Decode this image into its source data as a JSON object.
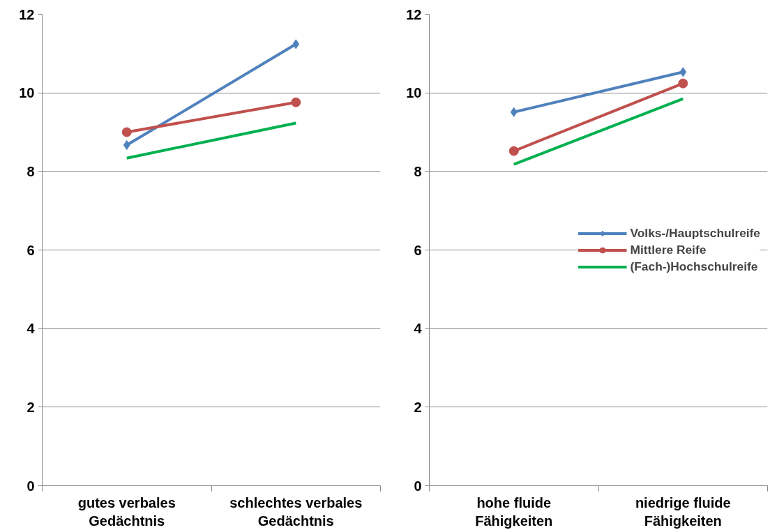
{
  "chart_data": [
    {
      "type": "line",
      "categories": [
        "gutes verbales\nGedächtnis",
        "schlechtes verbales\nGedächtnis"
      ],
      "ylim": [
        0,
        12
      ],
      "yticks": [
        0,
        2,
        4,
        6,
        8,
        10,
        12
      ],
      "grid": "y",
      "legend": false,
      "series": [
        {
          "color": "#4f81bd",
          "marker": "diamond",
          "values": [
            8.67,
            11.24
          ]
        },
        {
          "color": "#c0504d",
          "marker": "circle",
          "values": [
            9.0,
            9.76
          ]
        },
        {
          "color": "#00b050",
          "marker": "none",
          "values": [
            8.34,
            9.23
          ]
        }
      ]
    },
    {
      "type": "line",
      "categories": [
        "hohe fluide\nFähigkeiten",
        "niedrige fluide\nFähigkeiten"
      ],
      "ylim": [
        0,
        12
      ],
      "yticks": [
        0,
        2,
        4,
        6,
        8,
        10,
        12
      ],
      "grid": "y",
      "legend": "right",
      "series": [
        {
          "name": "Volks-/Hauptschulreife",
          "color": "#4f81bd",
          "marker": "diamond",
          "values": [
            9.51,
            10.53
          ]
        },
        {
          "name": "Mittlere Reife",
          "color": "#c0504d",
          "marker": "circle",
          "values": [
            8.52,
            10.24
          ]
        },
        {
          "name": "(Fach-)Hochschulreife",
          "color": "#00b050",
          "marker": "none",
          "values": [
            8.18,
            9.85
          ]
        }
      ]
    }
  ]
}
